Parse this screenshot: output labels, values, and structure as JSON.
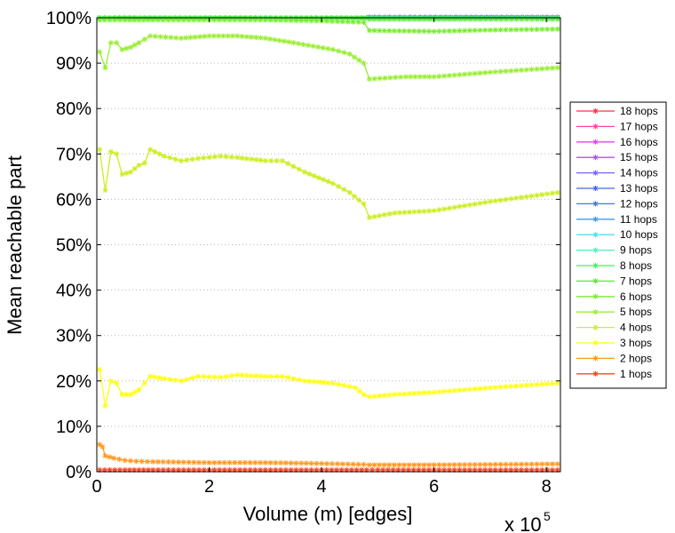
{
  "chart_data": {
    "type": "line",
    "title": "",
    "xlabel": "Volume (m) [edges]",
    "ylabel": "Mean reachable part",
    "x_multiplier_label": "x 10",
    "x_multiplier_exponent": "5",
    "xlim": [
      0,
      8.25
    ],
    "ylim": [
      0,
      100
    ],
    "xticks": [
      0,
      2,
      4,
      6,
      8
    ],
    "xtick_labels": [
      "0",
      "2",
      "4",
      "6",
      "8"
    ],
    "yticks": [
      0,
      10,
      20,
      30,
      40,
      50,
      60,
      70,
      80,
      90,
      100
    ],
    "ytick_labels": [
      "0%",
      "10%",
      "20%",
      "30%",
      "40%",
      "50%",
      "60%",
      "70%",
      "80%",
      "90%",
      "100%"
    ],
    "grid": "horizontal dotted",
    "legend_position": "right",
    "x_unit_note": "x values in units of 10^5 edges",
    "series": [
      {
        "name": "1 hops",
        "color": "#ff4422",
        "points": [
          [
            0.05,
            0.4
          ],
          [
            0.5,
            0.4
          ],
          [
            1.0,
            0.4
          ],
          [
            2.0,
            0.4
          ],
          [
            3.0,
            0.4
          ],
          [
            4.0,
            0.4
          ],
          [
            4.8,
            0.4
          ],
          [
            5.0,
            0.4
          ],
          [
            6.0,
            0.4
          ],
          [
            7.0,
            0.4
          ],
          [
            8.2,
            0.4
          ]
        ]
      },
      {
        "name": "2 hops",
        "color": "#ff9922",
        "points": [
          [
            0.05,
            6.0
          ],
          [
            0.1,
            5.5
          ],
          [
            0.15,
            3.5
          ],
          [
            0.3,
            3.0
          ],
          [
            0.5,
            2.5
          ],
          [
            0.7,
            2.3
          ],
          [
            1.0,
            2.2
          ],
          [
            2.0,
            2.0
          ],
          [
            3.0,
            2.0
          ],
          [
            4.0,
            1.8
          ],
          [
            4.75,
            1.6
          ],
          [
            4.85,
            1.5
          ],
          [
            6.0,
            1.5
          ],
          [
            7.0,
            1.6
          ],
          [
            8.2,
            1.7
          ]
        ]
      },
      {
        "name": "3 hops",
        "color": "#ffff11",
        "points": [
          [
            0.05,
            22.5
          ],
          [
            0.15,
            14.5
          ],
          [
            0.25,
            20.0
          ],
          [
            0.35,
            19.5
          ],
          [
            0.45,
            17.0
          ],
          [
            0.6,
            17.0
          ],
          [
            0.75,
            18.0
          ],
          [
            0.85,
            19.5
          ],
          [
            0.95,
            21.0
          ],
          [
            1.2,
            20.5
          ],
          [
            1.5,
            20.0
          ],
          [
            1.8,
            21.0
          ],
          [
            2.2,
            20.8
          ],
          [
            2.5,
            21.3
          ],
          [
            3.0,
            21.0
          ],
          [
            3.3,
            21.0
          ],
          [
            3.7,
            20.0
          ],
          [
            4.2,
            19.5
          ],
          [
            4.6,
            18.5
          ],
          [
            4.75,
            17.0
          ],
          [
            4.85,
            16.5
          ],
          [
            5.3,
            17.0
          ],
          [
            6.0,
            17.5
          ],
          [
            7.0,
            18.5
          ],
          [
            8.2,
            19.5
          ]
        ]
      },
      {
        "name": "4 hops",
        "color": "#ccee22",
        "points": [
          [
            0.05,
            71.0
          ],
          [
            0.15,
            62.0
          ],
          [
            0.25,
            70.5
          ],
          [
            0.35,
            70.0
          ],
          [
            0.45,
            65.5
          ],
          [
            0.6,
            66.0
          ],
          [
            0.75,
            67.5
          ],
          [
            0.85,
            68.0
          ],
          [
            0.95,
            71.0
          ],
          [
            1.2,
            69.5
          ],
          [
            1.5,
            68.5
          ],
          [
            1.8,
            69.0
          ],
          [
            2.2,
            69.5
          ],
          [
            2.5,
            69.2
          ],
          [
            3.0,
            68.5
          ],
          [
            3.3,
            68.5
          ],
          [
            3.7,
            66.0
          ],
          [
            4.2,
            63.5
          ],
          [
            4.5,
            61.5
          ],
          [
            4.75,
            59.0
          ],
          [
            4.85,
            56.0
          ],
          [
            5.3,
            57.0
          ],
          [
            6.0,
            57.5
          ],
          [
            7.0,
            59.5
          ],
          [
            8.2,
            61.5
          ]
        ]
      },
      {
        "name": "5 hops",
        "color": "#99ee33",
        "points": [
          [
            0.05,
            92.5
          ],
          [
            0.15,
            89.0
          ],
          [
            0.25,
            94.5
          ],
          [
            0.35,
            94.5
          ],
          [
            0.45,
            93.0
          ],
          [
            0.6,
            93.5
          ],
          [
            0.75,
            94.5
          ],
          [
            0.95,
            96.0
          ],
          [
            1.5,
            95.5
          ],
          [
            2.0,
            96.0
          ],
          [
            2.5,
            96.0
          ],
          [
            3.0,
            95.5
          ],
          [
            3.5,
            94.5
          ],
          [
            4.2,
            93.0
          ],
          [
            4.5,
            92.0
          ],
          [
            4.75,
            90.0
          ],
          [
            4.85,
            86.5
          ],
          [
            5.5,
            87.0
          ],
          [
            6.0,
            87.0
          ],
          [
            7.0,
            88.0
          ],
          [
            8.2,
            89.0
          ]
        ]
      },
      {
        "name": "6 hops",
        "color": "#77ee33",
        "points": [
          [
            0.05,
            99.5
          ],
          [
            0.5,
            99.5
          ],
          [
            1.0,
            99.5
          ],
          [
            2.0,
            99.5
          ],
          [
            3.0,
            99.5
          ],
          [
            4.0,
            99.3
          ],
          [
            4.75,
            99.0
          ],
          [
            4.85,
            97.2
          ],
          [
            6.0,
            97.0
          ],
          [
            7.0,
            97.3
          ],
          [
            8.2,
            97.5
          ]
        ]
      },
      {
        "name": "7 hops",
        "color": "#55ee33",
        "points": [
          [
            0.05,
            99.9
          ],
          [
            1.0,
            99.9
          ],
          [
            2.0,
            99.9
          ],
          [
            3.0,
            99.9
          ],
          [
            4.0,
            99.9
          ],
          [
            4.75,
            99.9
          ],
          [
            4.85,
            99.7
          ],
          [
            6.0,
            99.7
          ],
          [
            8.2,
            99.7
          ]
        ]
      },
      {
        "name": "8 hops",
        "color": "#44ee66",
        "points": [
          [
            0.05,
            100
          ],
          [
            8.2,
            100
          ]
        ]
      },
      {
        "name": "9 hops",
        "color": "#55eebb",
        "points": [
          [
            0.05,
            100
          ],
          [
            8.2,
            100
          ]
        ]
      },
      {
        "name": "10 hops",
        "color": "#55ddee",
        "points": [
          [
            0.05,
            100
          ],
          [
            8.2,
            100
          ]
        ]
      },
      {
        "name": "11 hops",
        "color": "#4499ee",
        "points": [
          [
            4.85,
            100
          ],
          [
            8.2,
            100
          ]
        ]
      },
      {
        "name": "12 hops",
        "color": "#4477ee",
        "points": [
          [
            4.85,
            100.1
          ],
          [
            8.2,
            100.1
          ]
        ]
      },
      {
        "name": "13 hops",
        "color": "#4466ee",
        "points": [
          [
            4.85,
            100.1
          ],
          [
            8.2,
            100.1
          ]
        ]
      },
      {
        "name": "14 hops",
        "color": "#7766ee",
        "points": [
          [
            4.85,
            100.1
          ],
          [
            8.2,
            100.1
          ]
        ]
      },
      {
        "name": "15 hops",
        "color": "#aa55ee",
        "points": [
          [
            4.85,
            100.1
          ],
          [
            8.2,
            100.1
          ]
        ]
      },
      {
        "name": "16 hops",
        "color": "#dd44ee",
        "points": [
          [
            4.85,
            100.1
          ],
          [
            8.2,
            100.1
          ]
        ]
      },
      {
        "name": "17 hops",
        "color": "#ff44aa",
        "points": [
          [
            4.85,
            100.1
          ],
          [
            8.2,
            100.1
          ]
        ]
      },
      {
        "name": "18 hops",
        "color": "#ff3344",
        "points": [
          [
            4.85,
            100.1
          ],
          [
            8.2,
            100.1
          ]
        ]
      }
    ]
  }
}
